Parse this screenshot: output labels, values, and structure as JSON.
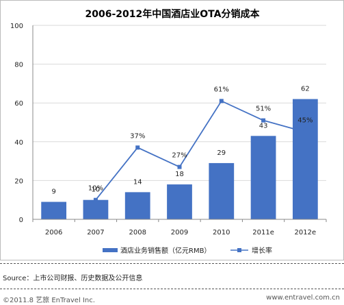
{
  "chart_data": {
    "type": "bar",
    "title": "2006-2012年中国酒店业OTA分销成本",
    "categories": [
      "2006",
      "2007",
      "2008",
      "2009",
      "2010",
      "2011e",
      "2012e"
    ],
    "ylim": [
      0,
      100
    ],
    "yticks": [
      0,
      20,
      40,
      60,
      80,
      100
    ],
    "series": [
      {
        "name": "酒店业务销售额（亿元RMB）",
        "kind": "bar",
        "color": "#4472C4",
        "values": [
          9,
          10,
          14,
          18,
          29,
          43,
          62
        ],
        "labels": [
          "9",
          "10",
          "14",
          "18",
          "29",
          "43",
          "62"
        ]
      },
      {
        "name": "增长率",
        "kind": "line",
        "color": "#4472C4",
        "values": [
          null,
          10,
          37,
          27,
          61,
          51,
          45
        ],
        "labels": [
          "",
          "10%",
          "37%",
          "27%",
          "61%",
          "51%",
          "45%"
        ]
      }
    ],
    "line_scale_note_hidden": true,
    "grid": true,
    "legend": "bottom"
  },
  "source": "Source：上市公司财报、历史数据及公开信息",
  "footer": {
    "left": "©2011.8 艺旅 EnTravel Inc.",
    "right": "www.entravel.com.cn"
  }
}
